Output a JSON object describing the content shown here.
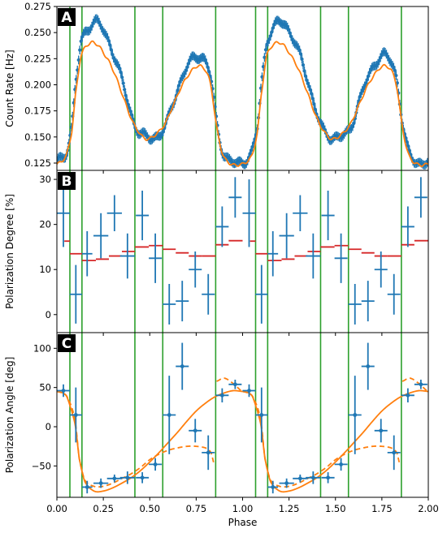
{
  "chart_data": {
    "type": "multi-panel",
    "x": {
      "label": "Phase",
      "range": [
        0.0,
        2.0
      ],
      "ticks": [
        0.0,
        0.25,
        0.5,
        0.75,
        1.0,
        1.25,
        1.5,
        1.75,
        2.0
      ],
      "tick_labels": [
        "0.00",
        "0.25",
        "0.50",
        "0.75",
        "1.00",
        "1.25",
        "1.50",
        "1.75",
        "2.00"
      ]
    },
    "phase_boundaries": [
      0.07,
      0.135,
      0.42,
      0.57,
      0.855,
      1.07,
      1.135,
      1.42,
      1.57,
      1.855
    ],
    "colors": {
      "data": "#1f77b4",
      "model": "#ff7f0e",
      "model_step": "#d62728",
      "boundary": "#2ca02c",
      "letter_bg": "#000000"
    },
    "panels": [
      {
        "letter": "A",
        "ylabel": "Count Rate [Hz]",
        "ylim": [
          0.118,
          0.275
        ],
        "yticks": [
          0.125,
          0.15,
          0.175,
          0.2,
          0.225,
          0.25,
          0.275
        ],
        "ytick_labels": [
          "0.125",
          "0.150",
          "0.175",
          "0.200",
          "0.225",
          "0.250",
          "0.275"
        ],
        "data_keypoints": [
          [
            0.0,
            0.126
          ],
          [
            0.05,
            0.135
          ],
          [
            0.08,
            0.16
          ],
          [
            0.1,
            0.2
          ],
          [
            0.13,
            0.24
          ],
          [
            0.18,
            0.257
          ],
          [
            0.22,
            0.26
          ],
          [
            0.26,
            0.248
          ],
          [
            0.3,
            0.232
          ],
          [
            0.35,
            0.205
          ],
          [
            0.4,
            0.172
          ],
          [
            0.44,
            0.155
          ],
          [
            0.48,
            0.15
          ],
          [
            0.53,
            0.15
          ],
          [
            0.58,
            0.158
          ],
          [
            0.62,
            0.18
          ],
          [
            0.67,
            0.205
          ],
          [
            0.72,
            0.222
          ],
          [
            0.76,
            0.228
          ],
          [
            0.8,
            0.222
          ],
          [
            0.83,
            0.205
          ],
          [
            0.86,
            0.165
          ],
          [
            0.89,
            0.138
          ],
          [
            0.92,
            0.128
          ],
          [
            0.96,
            0.125
          ],
          [
            1.0,
            0.126
          ]
        ],
        "model_keypoints": [
          [
            0.0,
            0.124
          ],
          [
            0.05,
            0.132
          ],
          [
            0.08,
            0.155
          ],
          [
            0.1,
            0.19
          ],
          [
            0.13,
            0.228
          ],
          [
            0.18,
            0.24
          ],
          [
            0.22,
            0.238
          ],
          [
            0.26,
            0.228
          ],
          [
            0.3,
            0.215
          ],
          [
            0.35,
            0.192
          ],
          [
            0.4,
            0.168
          ],
          [
            0.44,
            0.155
          ],
          [
            0.48,
            0.148
          ],
          [
            0.53,
            0.152
          ],
          [
            0.58,
            0.162
          ],
          [
            0.62,
            0.178
          ],
          [
            0.67,
            0.198
          ],
          [
            0.72,
            0.212
          ],
          [
            0.76,
            0.218
          ],
          [
            0.8,
            0.214
          ],
          [
            0.83,
            0.198
          ],
          [
            0.86,
            0.16
          ],
          [
            0.89,
            0.135
          ],
          [
            0.92,
            0.126
          ],
          [
            0.96,
            0.123
          ],
          [
            1.0,
            0.124
          ]
        ]
      },
      {
        "letter": "B",
        "ylabel": "Polarization Degree [%]",
        "ylim": [
          -4,
          32
        ],
        "yticks": [
          0,
          10,
          20,
          30
        ],
        "ytick_labels": [
          "0",
          "10",
          "20",
          "30"
        ],
        "points": [
          {
            "x": 0.035,
            "y": 22.5,
            "xerr": 0.035,
            "yerr": 7.5
          },
          {
            "x": 0.102,
            "y": 4.5,
            "xerr": 0.033,
            "yerr": 6.5
          },
          {
            "x": 0.163,
            "y": 13.5,
            "xerr": 0.028,
            "yerr": 5.0
          },
          {
            "x": 0.237,
            "y": 17.5,
            "xerr": 0.04,
            "yerr": 5.0
          },
          {
            "x": 0.31,
            "y": 22.5,
            "xerr": 0.04,
            "yerr": 4.0
          },
          {
            "x": 0.38,
            "y": 13.0,
            "xerr": 0.04,
            "yerr": 5.0
          },
          {
            "x": 0.46,
            "y": 22.0,
            "xerr": 0.035,
            "yerr": 5.5
          },
          {
            "x": 0.53,
            "y": 12.5,
            "xerr": 0.035,
            "yerr": 5.5
          },
          {
            "x": 0.605,
            "y": 2.3,
            "xerr": 0.035,
            "yerr": 4.5
          },
          {
            "x": 0.675,
            "y": 3.0,
            "xerr": 0.035,
            "yerr": 4.5
          },
          {
            "x": 0.745,
            "y": 10.0,
            "xerr": 0.035,
            "yerr": 4.0
          },
          {
            "x": 0.815,
            "y": 4.5,
            "xerr": 0.035,
            "yerr": 4.5
          },
          {
            "x": 0.89,
            "y": 19.5,
            "xerr": 0.035,
            "yerr": 4.5
          },
          {
            "x": 0.96,
            "y": 26.0,
            "xerr": 0.035,
            "yerr": 4.5
          }
        ],
        "model_steps": [
          {
            "x0": 0.04,
            "x1": 0.07,
            "y": 16.3
          },
          {
            "x0": 0.07,
            "x1": 0.135,
            "y": 13.5
          },
          {
            "x0": 0.135,
            "x1": 0.21,
            "y": 12.0
          },
          {
            "x0": 0.21,
            "x1": 0.28,
            "y": 12.3
          },
          {
            "x0": 0.28,
            "x1": 0.35,
            "y": 13.0
          },
          {
            "x0": 0.35,
            "x1": 0.42,
            "y": 14.0
          },
          {
            "x0": 0.42,
            "x1": 0.495,
            "y": 15.0
          },
          {
            "x0": 0.495,
            "x1": 0.57,
            "y": 15.3
          },
          {
            "x0": 0.57,
            "x1": 0.64,
            "y": 14.5
          },
          {
            "x0": 0.64,
            "x1": 0.71,
            "y": 13.7
          },
          {
            "x0": 0.71,
            "x1": 0.78,
            "y": 13.0
          },
          {
            "x0": 0.78,
            "x1": 0.855,
            "y": 13.0
          },
          {
            "x0": 0.855,
            "x1": 0.925,
            "y": 15.5
          },
          {
            "x0": 0.925,
            "x1": 1.0,
            "y": 16.4
          }
        ]
      },
      {
        "letter": "C",
        "ylabel": "Polarization Angle [deg]",
        "ylim": [
          -90,
          120
        ],
        "yticks": [
          -50,
          0,
          50,
          100
        ],
        "ytick_labels": [
          "−50",
          "0",
          "50",
          "100"
        ],
        "points": [
          {
            "x": 0.035,
            "y": 46,
            "xerr": 0.035,
            "yerr": 8
          },
          {
            "x": 0.102,
            "y": 15,
            "xerr": 0.033,
            "yerr": 35
          },
          {
            "x": 0.163,
            "y": -77,
            "xerr": 0.028,
            "yerr": 8
          },
          {
            "x": 0.237,
            "y": -72,
            "xerr": 0.04,
            "yerr": 6
          },
          {
            "x": 0.31,
            "y": -66,
            "xerr": 0.04,
            "yerr": 5
          },
          {
            "x": 0.38,
            "y": -65,
            "xerr": 0.04,
            "yerr": 8
          },
          {
            "x": 0.46,
            "y": -65,
            "xerr": 0.035,
            "yerr": 7
          },
          {
            "x": 0.53,
            "y": -48,
            "xerr": 0.035,
            "yerr": 8
          },
          {
            "x": 0.605,
            "y": 15,
            "xerr": 0.035,
            "yerr": 50
          },
          {
            "x": 0.675,
            "y": 77,
            "xerr": 0.035,
            "yerr": 30
          },
          {
            "x": 0.745,
            "y": -5,
            "xerr": 0.035,
            "yerr": 15
          },
          {
            "x": 0.815,
            "y": -33,
            "xerr": 0.035,
            "yerr": 22
          },
          {
            "x": 0.89,
            "y": 40,
            "xerr": 0.035,
            "yerr": 9
          },
          {
            "x": 0.96,
            "y": 54,
            "xerr": 0.035,
            "yerr": 6
          }
        ],
        "model_solid_keypoints": [
          [
            0.0,
            45
          ],
          [
            0.05,
            40
          ],
          [
            0.08,
            20
          ],
          [
            0.1,
            0
          ],
          [
            0.12,
            -40
          ],
          [
            0.15,
            -70
          ],
          [
            0.2,
            -82
          ],
          [
            0.25,
            -82
          ],
          [
            0.3,
            -78
          ],
          [
            0.35,
            -72
          ],
          [
            0.4,
            -65
          ],
          [
            0.45,
            -56
          ],
          [
            0.5,
            -45
          ],
          [
            0.55,
            -33
          ],
          [
            0.6,
            -20
          ],
          [
            0.65,
            -7
          ],
          [
            0.7,
            7
          ],
          [
            0.75,
            20
          ],
          [
            0.8,
            30
          ],
          [
            0.85,
            38
          ],
          [
            0.9,
            43
          ],
          [
            0.95,
            46
          ],
          [
            1.0,
            45
          ]
        ],
        "model_dashed_keypoints": [
          [
            0.0,
            45
          ],
          [
            0.05,
            40
          ],
          [
            0.08,
            25
          ],
          [
            0.1,
            5
          ],
          [
            0.12,
            -40
          ],
          [
            0.15,
            -68
          ],
          [
            0.2,
            -76
          ],
          [
            0.25,
            -76
          ],
          [
            0.3,
            -72
          ],
          [
            0.35,
            -66
          ],
          [
            0.4,
            -60
          ],
          [
            0.45,
            -52
          ],
          [
            0.5,
            -42
          ],
          [
            0.55,
            -35
          ],
          [
            0.6,
            -30
          ],
          [
            0.65,
            -27
          ],
          [
            0.7,
            -25
          ],
          [
            0.75,
            -25
          ],
          [
            0.8,
            -27
          ],
          [
            0.83,
            -33
          ],
          [
            0.85,
            -50
          ],
          [
            0.86,
            58
          ],
          [
            0.9,
            62
          ],
          [
            0.95,
            55
          ],
          [
            1.0,
            45
          ]
        ]
      }
    ]
  }
}
